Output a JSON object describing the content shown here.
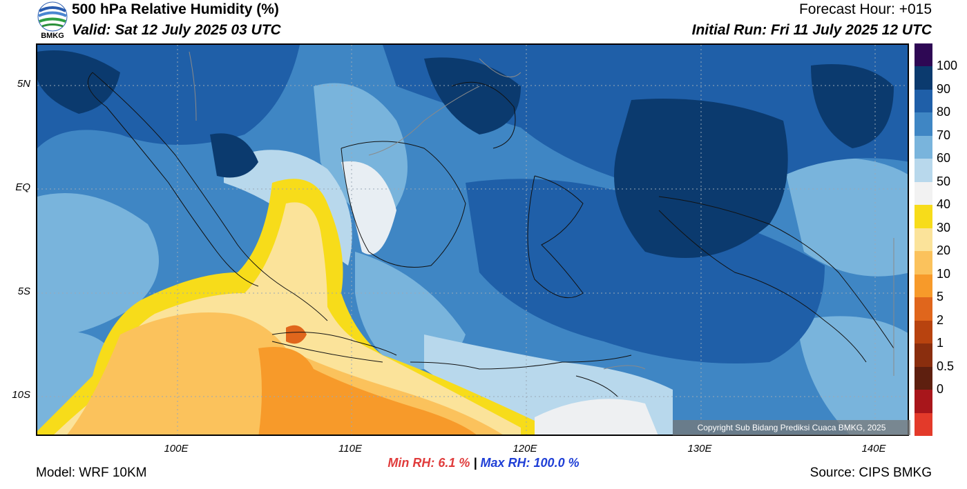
{
  "header": {
    "title": "500 hPa Relative Humidity (%)",
    "valid": "Valid: Sat 12 July 2025 03 UTC",
    "forecast_hour": "Forecast Hour: +015",
    "initial_run": "Initial Run: Fri 11 July 2025 12 UTC",
    "logo_text": "BMKG"
  },
  "axes": {
    "lat_labels": [
      "5N",
      "EQ",
      "5S",
      "10S"
    ],
    "lon_labels": [
      "100E",
      "110E",
      "120E",
      "130E",
      "140E"
    ]
  },
  "colorbar": {
    "labels": [
      "100",
      "90",
      "80",
      "70",
      "60",
      "50",
      "40",
      "30",
      "20",
      "10",
      "5",
      "2",
      "1",
      "0.5",
      "0"
    ],
    "colors": [
      "#2e0854",
      "#0b3a6e",
      "#1f5fa8",
      "#3f86c4",
      "#79b4dc",
      "#b8d8ec",
      "#f2f2f2",
      "#f7dc1a",
      "#fbe39a",
      "#fbc25c",
      "#f79a2a",
      "#e0661c",
      "#b8430f",
      "#8a2e0e",
      "#5e1f0f",
      "#a8161b",
      "#e33a2a"
    ]
  },
  "copyright": "Copyright Sub Bidang Prediksi Cuaca BMKG, 2025",
  "stats": {
    "min_label": "Min RH:",
    "min_value": "6.1 %",
    "separator": "|",
    "max_label": "Max RH:",
    "max_value": "100.0 %"
  },
  "footer": {
    "model": "Model: WRF 10KM",
    "source": "Source: CIPS BMKG"
  }
}
